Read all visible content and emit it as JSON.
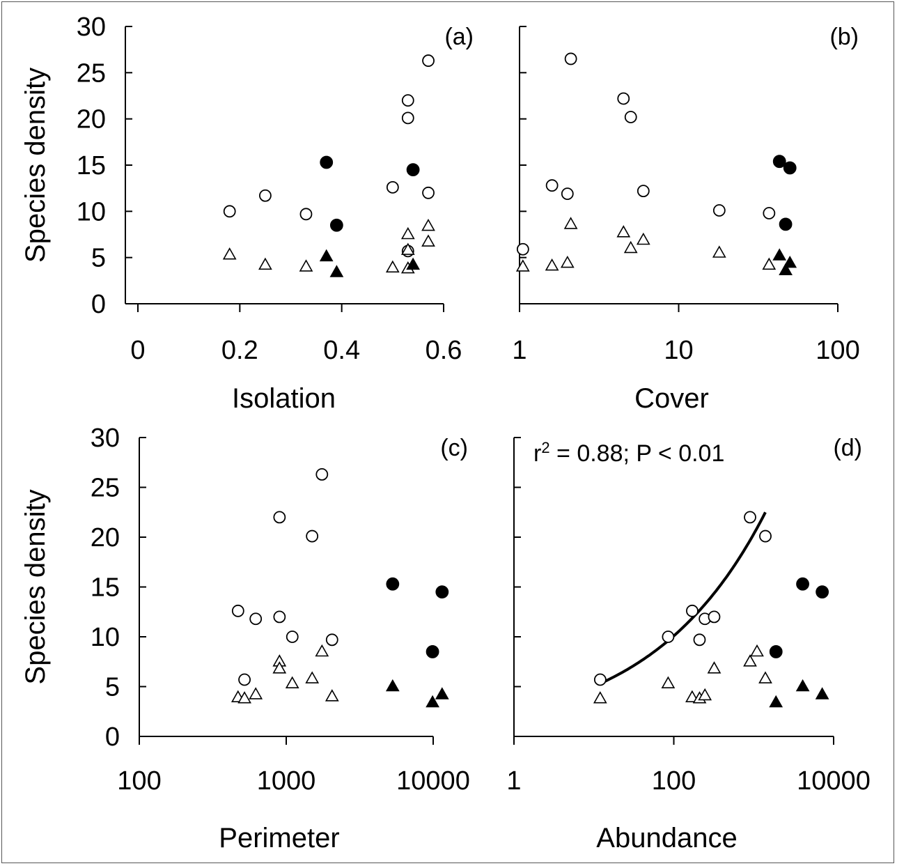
{
  "chart_data": [
    {
      "panel": "(a)",
      "type": "scatter",
      "xlabel": "Isolation",
      "ylabel": "Species density",
      "xscale": "linear",
      "xlim": [
        0,
        0.6
      ],
      "ylim": [
        0,
        30
      ],
      "xticks": [
        "0",
        "0.2",
        "0.4",
        "0.6"
      ],
      "yticks": [
        "0",
        "5",
        "10",
        "15",
        "20",
        "25",
        "30"
      ],
      "series": [
        {
          "marker": "open-circle",
          "points": [
            [
              0.18,
              10.0
            ],
            [
              0.25,
              11.7
            ],
            [
              0.33,
              9.7
            ],
            [
              0.5,
              12.6
            ],
            [
              0.53,
              22.0
            ],
            [
              0.53,
              20.1
            ],
            [
              0.53,
              5.7
            ],
            [
              0.57,
              26.3
            ],
            [
              0.57,
              12.0
            ]
          ]
        },
        {
          "marker": "filled-circle",
          "points": [
            [
              0.37,
              15.3
            ],
            [
              0.39,
              8.5
            ],
            [
              0.54,
              14.5
            ]
          ]
        },
        {
          "marker": "open-triangle",
          "points": [
            [
              0.18,
              5.3
            ],
            [
              0.25,
              4.2
            ],
            [
              0.33,
              4.0
            ],
            [
              0.5,
              3.9
            ],
            [
              0.53,
              3.8
            ],
            [
              0.53,
              5.8
            ],
            [
              0.53,
              7.5
            ],
            [
              0.57,
              8.4
            ],
            [
              0.57,
              6.7
            ]
          ]
        },
        {
          "marker": "filled-triangle",
          "points": [
            [
              0.37,
              5.1
            ],
            [
              0.39,
              3.4
            ],
            [
              0.54,
              4.2
            ]
          ]
        }
      ]
    },
    {
      "panel": "(b)",
      "type": "scatter",
      "xlabel": "Cover",
      "xscale": "log",
      "xlim": [
        1,
        100
      ],
      "ylim": [
        0,
        30
      ],
      "xticks": [
        "1",
        "10",
        "100"
      ],
      "series": [
        {
          "marker": "open-circle",
          "points": [
            [
              1.05,
              5.9
            ],
            [
              1.6,
              12.8
            ],
            [
              2.0,
              11.9
            ],
            [
              2.1,
              26.5
            ],
            [
              4.5,
              22.2
            ],
            [
              5.0,
              20.2
            ],
            [
              6.0,
              12.2
            ],
            [
              18.0,
              10.1
            ],
            [
              37.0,
              9.8
            ]
          ]
        },
        {
          "marker": "filled-circle",
          "points": [
            [
              43.0,
              15.4
            ],
            [
              47.0,
              8.6
            ],
            [
              50.0,
              14.7
            ]
          ]
        },
        {
          "marker": "open-triangle",
          "points": [
            [
              1.05,
              4.0
            ],
            [
              1.6,
              4.1
            ],
            [
              2.0,
              4.4
            ],
            [
              2.1,
              8.6
            ],
            [
              4.5,
              7.7
            ],
            [
              5.0,
              6.0
            ],
            [
              6.0,
              6.9
            ],
            [
              18.0,
              5.5
            ],
            [
              37.0,
              4.2
            ]
          ]
        },
        {
          "marker": "filled-triangle",
          "points": [
            [
              43.0,
              5.2
            ],
            [
              47.0,
              3.6
            ],
            [
              50.0,
              4.4
            ]
          ]
        }
      ]
    },
    {
      "panel": "(c)",
      "type": "scatter",
      "xlabel": "Perimeter",
      "ylabel": "Species density",
      "xscale": "log",
      "xlim": [
        100,
        10000
      ],
      "ylim": [
        0,
        30
      ],
      "xticks": [
        "100",
        "1000",
        "10000"
      ],
      "yticks": [
        "0",
        "5",
        "10",
        "15",
        "20",
        "25",
        "30"
      ],
      "series": [
        {
          "marker": "open-circle",
          "points": [
            [
              470,
              12.6
            ],
            [
              520,
              5.7
            ],
            [
              620,
              11.8
            ],
            [
              900,
              12.0
            ],
            [
              900,
              22.0
            ],
            [
              1100,
              10.0
            ],
            [
              1500,
              20.1
            ],
            [
              1750,
              26.3
            ],
            [
              2050,
              9.7
            ]
          ]
        },
        {
          "marker": "filled-circle",
          "points": [
            [
              5300,
              15.3
            ],
            [
              9900,
              8.5
            ],
            [
              11500,
              14.5
            ]
          ]
        },
        {
          "marker": "open-triangle",
          "points": [
            [
              470,
              3.9
            ],
            [
              520,
              3.8
            ],
            [
              620,
              4.2
            ],
            [
              900,
              7.5
            ],
            [
              900,
              6.8
            ],
            [
              1100,
              5.3
            ],
            [
              1500,
              5.8
            ],
            [
              1750,
              8.5
            ],
            [
              2050,
              4.0
            ]
          ]
        },
        {
          "marker": "filled-triangle",
          "points": [
            [
              5300,
              5.0
            ],
            [
              9900,
              3.4
            ],
            [
              11500,
              4.2
            ]
          ]
        }
      ]
    },
    {
      "panel": "(d)",
      "type": "scatter",
      "xlabel": "Abundance",
      "xscale": "log",
      "xlim": [
        1,
        10000
      ],
      "ylim": [
        0,
        30
      ],
      "xticks": [
        "1",
        "100",
        "10000"
      ],
      "annotation": {
        "base": "r",
        "sup": "2",
        "rest": " = 0.88; P < 0.01"
      },
      "series": [
        {
          "marker": "open-circle",
          "points": [
            [
              12,
              5.7
            ],
            [
              85,
              10.0
            ],
            [
              170,
              12.6
            ],
            [
              210,
              9.7
            ],
            [
              245,
              11.8
            ],
            [
              320,
              12.0
            ],
            [
              900,
              22.0
            ],
            [
              1400,
              20.1
            ]
          ]
        },
        {
          "marker": "filled-circle",
          "points": [
            [
              1900,
              8.5
            ],
            [
              4100,
              15.3
            ],
            [
              7200,
              14.5
            ]
          ]
        },
        {
          "marker": "open-triangle",
          "points": [
            [
              12,
              3.8
            ],
            [
              85,
              5.3
            ],
            [
              170,
              3.9
            ],
            [
              210,
              3.8
            ],
            [
              245,
              4.1
            ],
            [
              320,
              6.8
            ],
            [
              900,
              7.5
            ],
            [
              1100,
              8.5
            ],
            [
              1400,
              5.8
            ]
          ]
        },
        {
          "marker": "filled-triangle",
          "points": [
            [
              1900,
              3.4
            ],
            [
              4100,
              5.0
            ],
            [
              7200,
              4.2
            ]
          ]
        }
      ],
      "fit": {
        "type": "exponential-in-log-x",
        "from": [
          12,
          5.3
        ],
        "to": [
          1400,
          22.5
        ]
      }
    }
  ]
}
